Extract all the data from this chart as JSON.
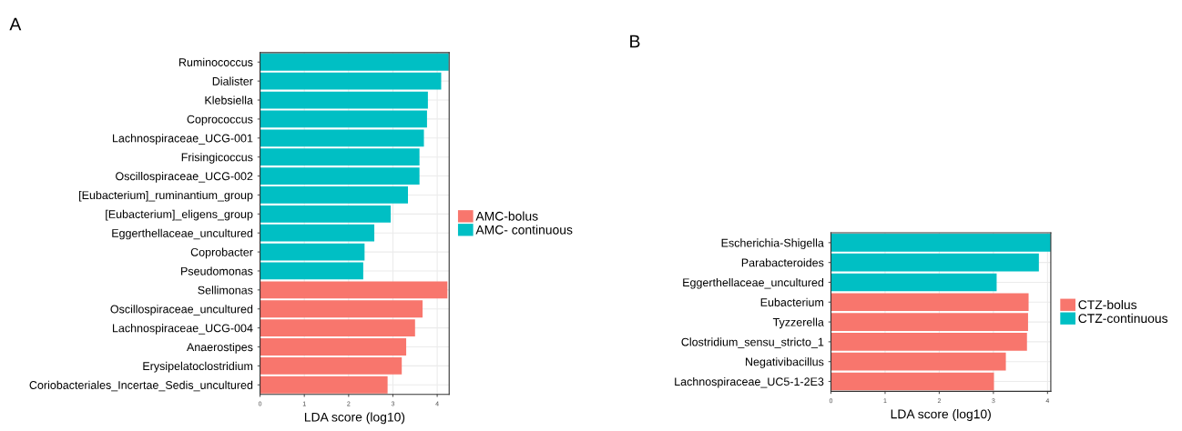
{
  "chart_data": [
    {
      "type": "bar",
      "title": "A",
      "orientation": "horizontal",
      "xlabel": "LDA score (log10)",
      "categories": [
        "Ruminococcus",
        "Dialister",
        "Klebsiella",
        "Coprococcus",
        "Lachnospiraceae_UCG-001",
        "Frisingicoccus",
        "Oscillospiraceae_UCG-002",
        "[Eubacterium]_ruminantium_group",
        "[Eubacterium]_eligens_group",
        "Eggerthellaceae_uncultured",
        "Coprobacter",
        "Pseudomonas",
        "Sellimonas",
        "Oscillospiraceae_uncultured",
        "Lachnospiraceae_UCG-004",
        "Anaerostipes",
        "Erysipelatoclostridium",
        "Coriobacteriales_Incertae_Sedis_uncultured"
      ],
      "series": [
        {
          "name": "AMC-bolus",
          "color": "#f8766d",
          "values": [
            null,
            null,
            null,
            null,
            null,
            null,
            null,
            null,
            null,
            null,
            null,
            null,
            4.23,
            3.67,
            3.5,
            3.3,
            3.2,
            2.88
          ]
        },
        {
          "name": "AMC- continuous",
          "color": "#00bfc4",
          "values": [
            4.26,
            4.09,
            3.79,
            3.77,
            3.7,
            3.6,
            3.6,
            3.34,
            2.95,
            2.58,
            2.36,
            2.33,
            null,
            null,
            null,
            null,
            null,
            null
          ]
        }
      ],
      "xlim": [
        0,
        4.27
      ],
      "xticks": [
        0,
        1,
        2,
        3,
        4
      ],
      "grid": true,
      "legend": "right"
    },
    {
      "type": "bar",
      "title": "B",
      "orientation": "horizontal",
      "xlabel": "LDA score (log10)",
      "categories": [
        "Escherichia-Shigella",
        "Parabacteroides",
        "Eggerthellaceae_uncultured",
        "Eubacterium",
        "Tyzzerella",
        "Clostridium_sensu_stricto_1",
        "Negativibacillus",
        "Lachnospiraceae_UC5-1-2E3"
      ],
      "series": [
        {
          "name": "CTZ-bolus",
          "color": "#f8766d",
          "values": [
            null,
            null,
            null,
            3.65,
            3.64,
            3.62,
            3.23,
            3.01
          ]
        },
        {
          "name": "CTZ-continuous",
          "color": "#00bfc4",
          "values": [
            4.06,
            3.84,
            3.06,
            null,
            null,
            null,
            null,
            null
          ]
        }
      ],
      "xlim": [
        0,
        4.06
      ],
      "xticks": [
        0,
        1,
        2,
        3,
        4
      ],
      "grid": true,
      "legend": "right"
    }
  ]
}
